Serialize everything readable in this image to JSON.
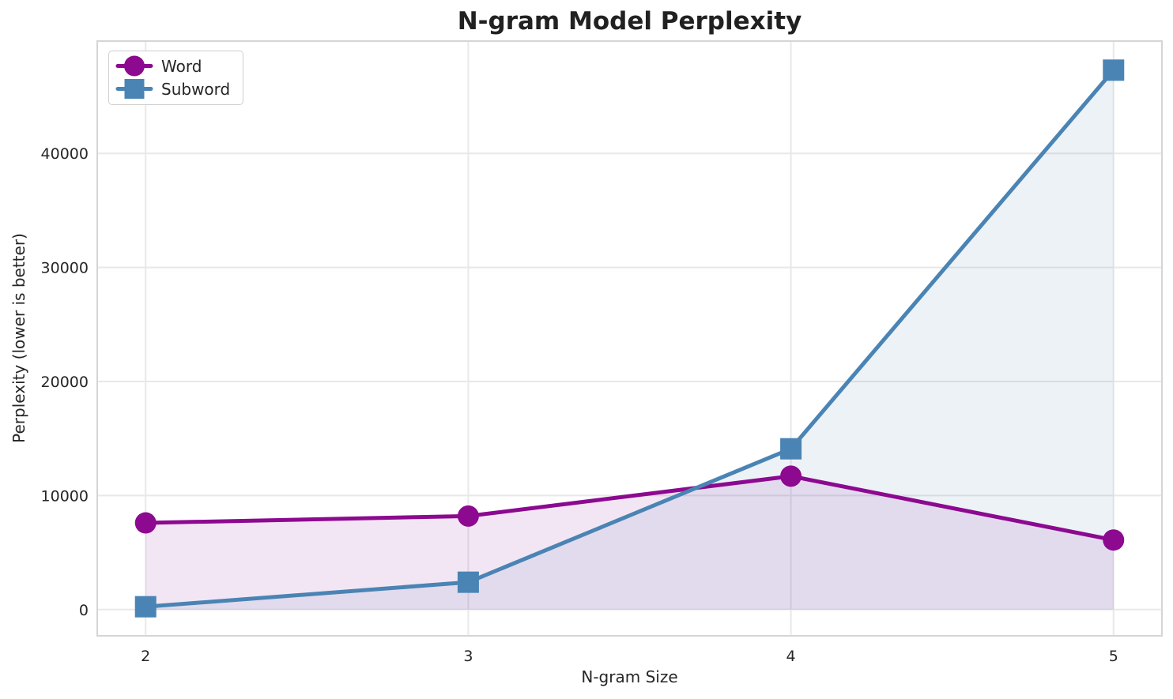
{
  "figure": {
    "background": "#ffffff"
  },
  "chart_data": {
    "type": "line",
    "title": "N-gram Model Perplexity",
    "xlabel": "N-gram Size",
    "ylabel": "Perplexity (lower is better)",
    "x": [
      2,
      3,
      4,
      5
    ],
    "xtick_labels": [
      "2",
      "3",
      "4",
      "5"
    ],
    "yticks": [
      0,
      10000,
      20000,
      30000,
      40000
    ],
    "xlim": [
      1.85,
      5.15
    ],
    "ylim": [
      -2300,
      49850
    ],
    "grid": true,
    "legend_position": "upper-left",
    "series": [
      {
        "name": "Word",
        "marker": "circle",
        "color": "#8C0990",
        "fill_color": "rgba(140, 9, 144, 0.10)",
        "values": [
          7600,
          8200,
          11700,
          6100
        ]
      },
      {
        "name": "Subword",
        "marker": "square",
        "color": "#4A84B4",
        "fill_color": "rgba(74, 132, 180, 0.10)",
        "values": [
          250,
          2400,
          14100,
          47300
        ]
      }
    ],
    "styles": {
      "grid_color": "#e8e8e8",
      "spine_color": "#d5d5d5",
      "tick_text_color": "#262626"
    }
  }
}
